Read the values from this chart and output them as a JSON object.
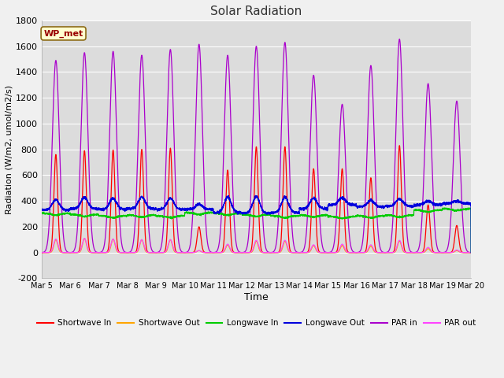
{
  "title": "Solar Radiation",
  "xlabel": "Time",
  "ylabel": "Radiation (W/m2, umol/m2/s)",
  "ylim": [
    -200,
    1800
  ],
  "yticks": [
    -200,
    0,
    200,
    400,
    600,
    800,
    1000,
    1200,
    1400,
    1600,
    1800
  ],
  "xtick_labels": [
    "Mar 5",
    "Mar 6",
    "Mar 7",
    "Mar 8",
    "Mar 9",
    "Mar 10",
    "Mar 11",
    "Mar 12",
    "Mar 13",
    "Mar 14",
    "Mar 15",
    "Mar 16",
    "Mar 17",
    "Mar 18",
    "Mar 19",
    "Mar 20"
  ],
  "annotation_text": "WP_met",
  "annotation_bg": "#FFFFD0",
  "annotation_border": "#8B6914",
  "colors": {
    "shortwave_in": "#FF0000",
    "shortwave_out": "#FFA500",
    "longwave_in": "#00CC00",
    "longwave_out": "#0000DD",
    "par_in": "#AA00CC",
    "par_out": "#FF44FF"
  },
  "legend_labels": [
    "Shortwave In",
    "Shortwave Out",
    "Longwave In",
    "Longwave Out",
    "PAR in",
    "PAR out"
  ],
  "plot_bg_color": "#DCDCDC",
  "fig_bg_color": "#F0F0F0",
  "grid_color": "#FFFFFF",
  "num_days": 15,
  "points_per_day": 288
}
